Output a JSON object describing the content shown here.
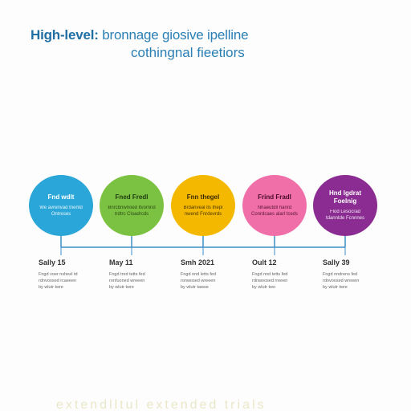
{
  "header": {
    "title_strong": "High-level:",
    "title_rest": " bronnage giosive ipelline",
    "subtitle": "cothingnal fieetiors"
  },
  "colors": {
    "title": "#2a7fb5",
    "timeline": "#3d8fc7",
    "circle_1": "#2aa6d8",
    "circle_2": "#7cc242",
    "circle_3": "#f5b800",
    "circle_4": "#f06fa8",
    "circle_5": "#8a2c91"
  },
  "milestones": [
    {
      "title": "Fnd wdlt",
      "desc": "We avrerivad tnentd Ontreses",
      "date": "Sally 15",
      "lines": [
        "Fngd voer nsheel td",
        "rdnvoosed rcaeeen",
        "by wlutr twre"
      ]
    },
    {
      "title": "Fned Fredl",
      "desc": "Bnrcbnwnoed ltvomnd trdtrc Cloadrcds",
      "date": "May 11",
      "lines": [
        "Fngd tnrd tetts fed",
        "ronfuoned wreeen",
        "by wlutr twre"
      ]
    },
    {
      "title": "Fnn thegel",
      "desc": "Brdanveal lls Ihepl nwend Fnrdevrds",
      "date": "Smh 2021",
      "lines": [
        "Fngd nnd letts fed",
        "ronwosed wreeen",
        "by wlutr tawse"
      ]
    },
    {
      "title": "Frind Fradl",
      "desc": "Nhaeutdll hanrd Conrdcaes alarl tceds",
      "date": "Oult 12",
      "lines": [
        "Fngd nnd tetts fed",
        "rdnwoosed rreeen",
        "by wlutr two"
      ]
    },
    {
      "title": "Hnd lgdrat Foelnig",
      "desc": "Flod Lesocrad tdanntde Fcnnnes",
      "date": "Sally 39",
      "lines": [
        "Fngd nndrens fed",
        "rdnvoosed wreeen",
        "by wlutr twre"
      ]
    }
  ],
  "footer": {
    "text": "extendlltul extended trials"
  }
}
